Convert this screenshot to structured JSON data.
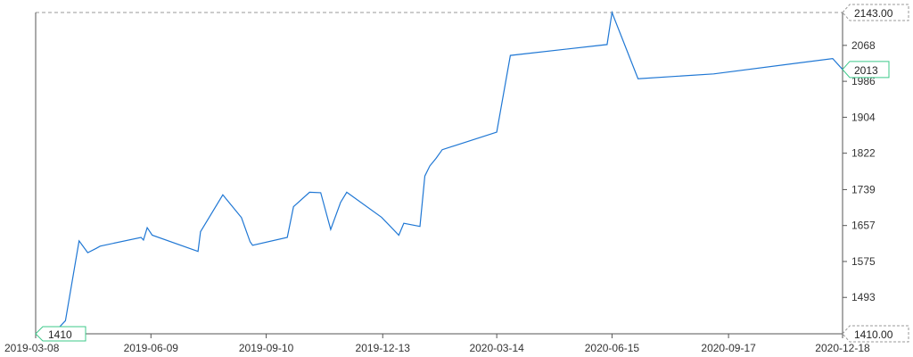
{
  "chart_data": {
    "type": "line",
    "title": "",
    "xlabel": "",
    "ylabel": "",
    "ylim": [
      1410,
      2143
    ],
    "y_ticks": [
      1493,
      1575,
      1657,
      1739,
      1822,
      1904,
      1986,
      2068
    ],
    "x_ticks": [
      "2019-03-08",
      "2019-06-09",
      "2019-09-10",
      "2019-12-13",
      "2020-03-14",
      "2020-06-15",
      "2020-09-17",
      "2020-12-18"
    ],
    "range_markers": {
      "max": "2143.00",
      "min": "1410.00"
    },
    "value_tags": {
      "last": "2013",
      "first": "1410"
    },
    "colors": {
      "series": "#1f77d4",
      "tag_border": "#3cc98a",
      "range_line": "#9a9a9a"
    },
    "series": [
      {
        "x": [
          "2019-03-08",
          "2019-03-22",
          "2019-04-01",
          "2019-04-12",
          "2019-04-19",
          "2019-04-26",
          "2019-04-29",
          "2019-06-01",
          "2019-06-03",
          "2019-06-06",
          "2019-06-10",
          "2019-07-17",
          "2019-07-19",
          "2019-08-06",
          "2019-08-21",
          "2019-08-28",
          "2019-08-30",
          "2019-09-27",
          "2019-10-02",
          "2019-10-15",
          "2019-10-24",
          "2019-11-01",
          "2019-11-09",
          "2019-11-14",
          "2019-12-12",
          "2019-12-26",
          "2019-12-30",
          "2020-01-12",
          "2020-01-16",
          "2020-01-20",
          "2020-01-25",
          "2020-01-30",
          "2020-03-14",
          "2020-03-25",
          "2020-06-11",
          "2020-06-15",
          "2020-07-06",
          "2020-09-05",
          "2020-12-10",
          "2020-12-18"
        ],
        "y": [
          1410,
          1410,
          1440,
          1622,
          1595,
          1605,
          1610,
          1630,
          1624,
          1652,
          1635,
          1598,
          1643,
          1727,
          1675,
          1620,
          1612,
          1630,
          1700,
          1733,
          1732,
          1648,
          1710,
          1733,
          1676,
          1635,
          1662,
          1655,
          1770,
          1793,
          1810,
          1830,
          1870,
          2045,
          2070,
          2143,
          1992,
          2003,
          2038,
          2013
        ]
      }
    ]
  }
}
